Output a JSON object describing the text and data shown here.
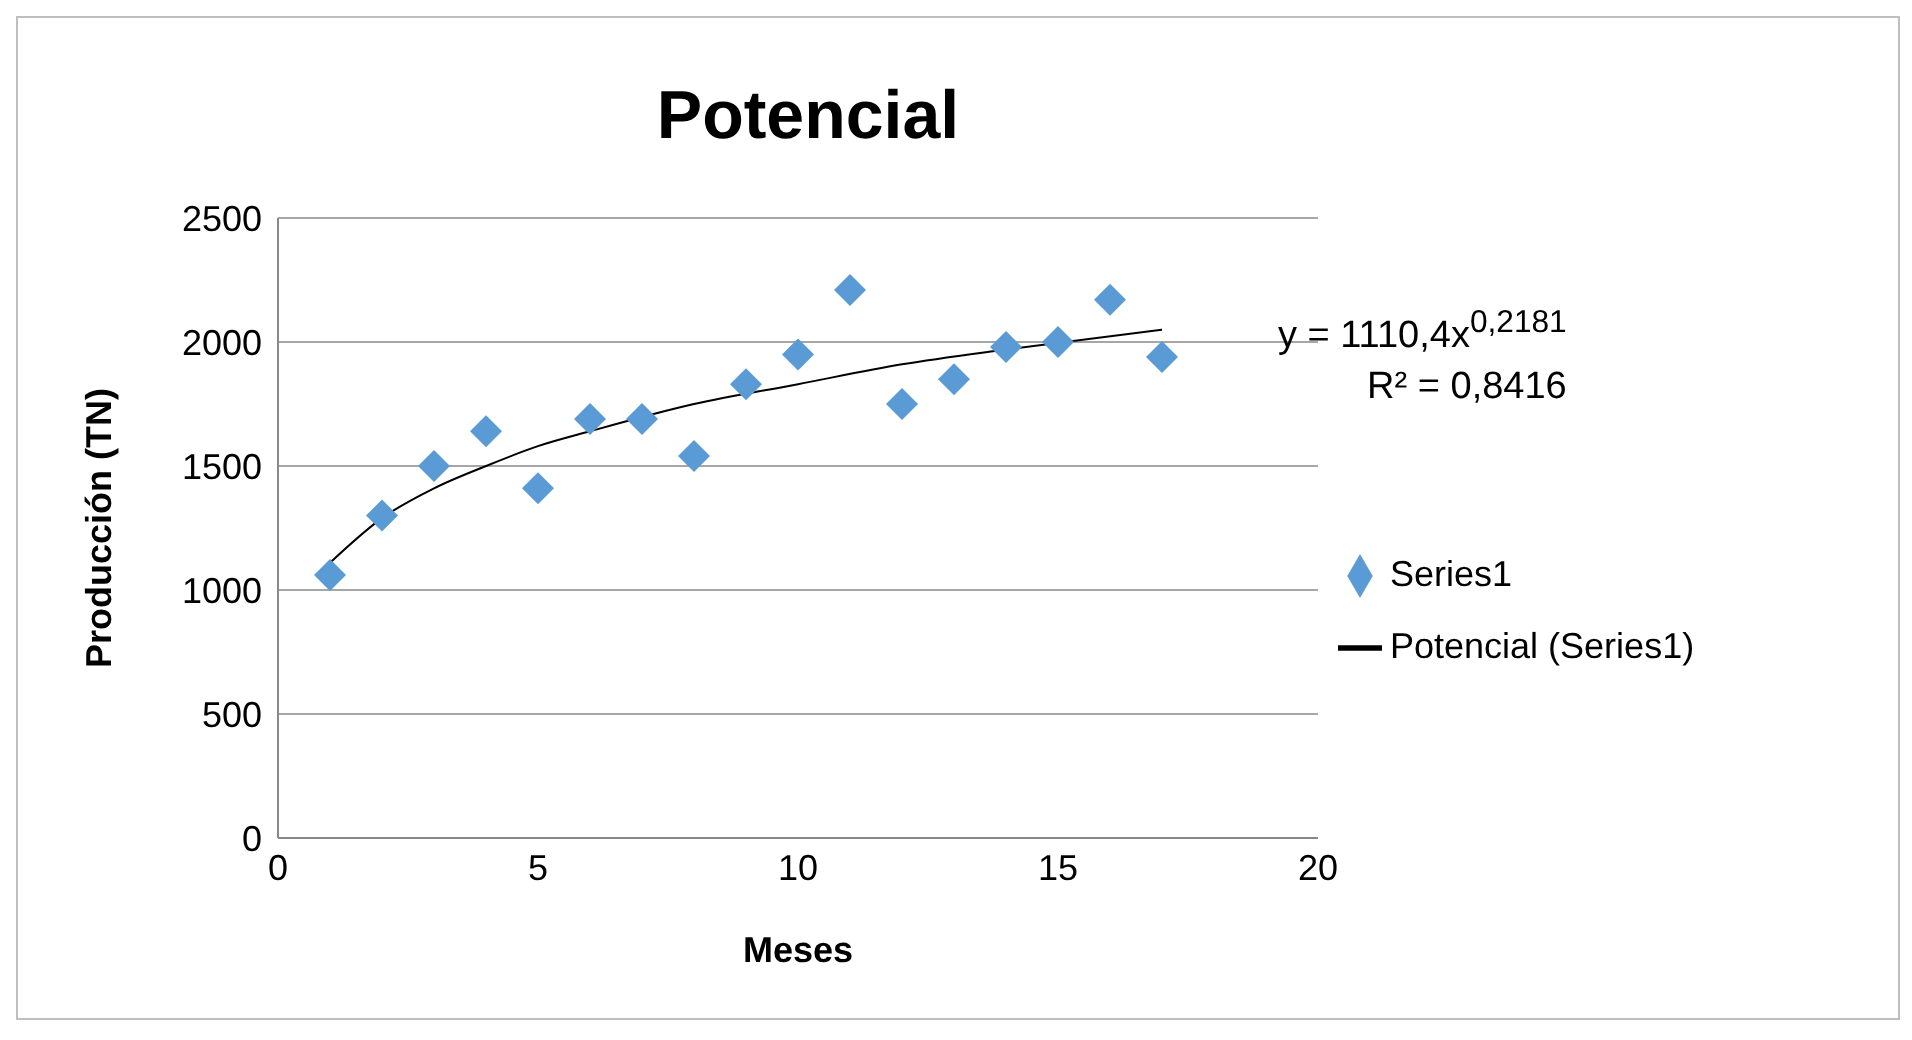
{
  "chart_data": {
    "type": "scatter",
    "title": "Potencial",
    "xlabel": "Meses",
    "ylabel": "Producción (TN)",
    "xlim": [
      0,
      20
    ],
    "xticks": [
      0,
      5,
      10,
      15,
      20
    ],
    "ylim": [
      0,
      2500
    ],
    "yticks": [
      0,
      500,
      1000,
      1500,
      2000,
      2500
    ],
    "grid": "y",
    "legend": "right",
    "marker": "diamond",
    "annotations": [
      "y = 1110,4x$^{0,2181}$",
      "R² = 0,8416"
    ],
    "series": [
      {
        "name": "Series1",
        "color": "#5b9bd5",
        "x": [
          1,
          2,
          3,
          4,
          5,
          6,
          7,
          8,
          9,
          10,
          11,
          12,
          13,
          14,
          15,
          16,
          17
        ],
        "values": [
          1060,
          1300,
          1500,
          1640,
          1410,
          1690,
          1690,
          1540,
          1830,
          1950,
          2210,
          1750,
          1850,
          1980,
          2000,
          2170,
          1940
        ]
      },
      {
        "name": "Potencial (Series1)",
        "type": "line",
        "color": "#000000",
        "marker": "none",
        "x": [
          1,
          2,
          3,
          4,
          5,
          6,
          8,
          10,
          12,
          14,
          17
        ],
        "values": [
          1110,
          1290,
          1410,
          1500,
          1580,
          1640,
          1750,
          1830,
          1910,
          1970,
          2050
        ]
      }
    ]
  }
}
